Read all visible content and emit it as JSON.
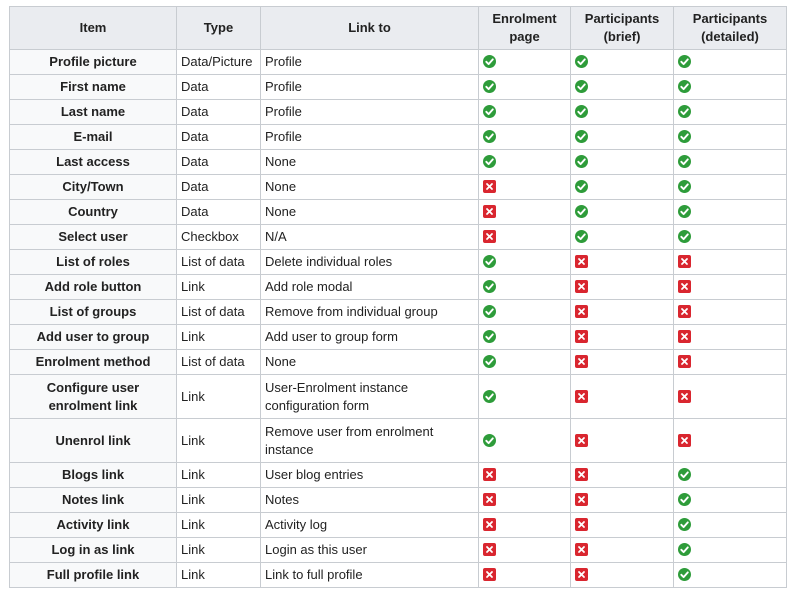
{
  "columns": [
    "Item",
    "Type",
    "Link to",
    "Enrolment\npage",
    "Participants\n(brief)",
    "Participants\n(detailed)"
  ],
  "rows": [
    {
      "item": "Profile picture",
      "type": "Data/Picture",
      "link": "Profile",
      "enrol": "check",
      "brief": "check",
      "detailed": "check"
    },
    {
      "item": "First name",
      "type": "Data",
      "link": "Profile",
      "enrol": "check",
      "brief": "check",
      "detailed": "check"
    },
    {
      "item": "Last name",
      "type": "Data",
      "link": "Profile",
      "enrol": "check",
      "brief": "check",
      "detailed": "check"
    },
    {
      "item": "E-mail",
      "type": "Data",
      "link": "Profile",
      "enrol": "check",
      "brief": "check",
      "detailed": "check"
    },
    {
      "item": "Last access",
      "type": "Data",
      "link": "None",
      "enrol": "check",
      "brief": "check",
      "detailed": "check"
    },
    {
      "item": "City/Town",
      "type": "Data",
      "link": "None",
      "enrol": "cross",
      "brief": "check",
      "detailed": "check"
    },
    {
      "item": "Country",
      "type": "Data",
      "link": "None",
      "enrol": "cross",
      "brief": "check",
      "detailed": "check"
    },
    {
      "item": "Select user",
      "type": "Checkbox",
      "link": "N/A",
      "enrol": "cross",
      "brief": "check",
      "detailed": "check"
    },
    {
      "item": "List of roles",
      "type": "List of data",
      "link": "Delete individual roles",
      "enrol": "check",
      "brief": "cross",
      "detailed": "cross"
    },
    {
      "item": "Add role button",
      "type": "Link",
      "link": "Add role modal",
      "enrol": "check",
      "brief": "cross",
      "detailed": "cross"
    },
    {
      "item": "List of groups",
      "type": "List of data",
      "link": "Remove from individual group",
      "enrol": "check",
      "brief": "cross",
      "detailed": "cross"
    },
    {
      "item": "Add user to group",
      "type": "Link",
      "link": "Add user to group form",
      "enrol": "check",
      "brief": "cross",
      "detailed": "cross"
    },
    {
      "item": "Enrolment method",
      "type": "List of data",
      "link": "None",
      "enrol": "check",
      "brief": "cross",
      "detailed": "cross"
    },
    {
      "item": "Configure user enrolment link",
      "type": "Link",
      "link": "User-Enrolment instance configuration form",
      "enrol": "check",
      "brief": "cross",
      "detailed": "cross",
      "tall": true
    },
    {
      "item": "Unenrol link",
      "type": "Link",
      "link": "Remove user from enrolment instance",
      "enrol": "check",
      "brief": "cross",
      "detailed": "cross",
      "tall": true
    },
    {
      "item": "Blogs link",
      "type": "Link",
      "link": "User blog entries",
      "enrol": "cross",
      "brief": "cross",
      "detailed": "check"
    },
    {
      "item": "Notes link",
      "type": "Link",
      "link": "Notes",
      "enrol": "cross",
      "brief": "cross",
      "detailed": "check"
    },
    {
      "item": "Activity link",
      "type": "Link",
      "link": "Activity log",
      "enrol": "cross",
      "brief": "cross",
      "detailed": "check"
    },
    {
      "item": "Log in as link",
      "type": "Link",
      "link": "Login as this user",
      "enrol": "cross",
      "brief": "cross",
      "detailed": "check"
    },
    {
      "item": "Full profile link",
      "type": "Link",
      "link": "Link to full profile",
      "enrol": "cross",
      "brief": "cross",
      "detailed": "check"
    }
  ],
  "colors": {
    "check": "#2e9c3a",
    "cross": "#d9262f",
    "header_bg": "#eaecf0",
    "border": "#c8ccd1"
  }
}
